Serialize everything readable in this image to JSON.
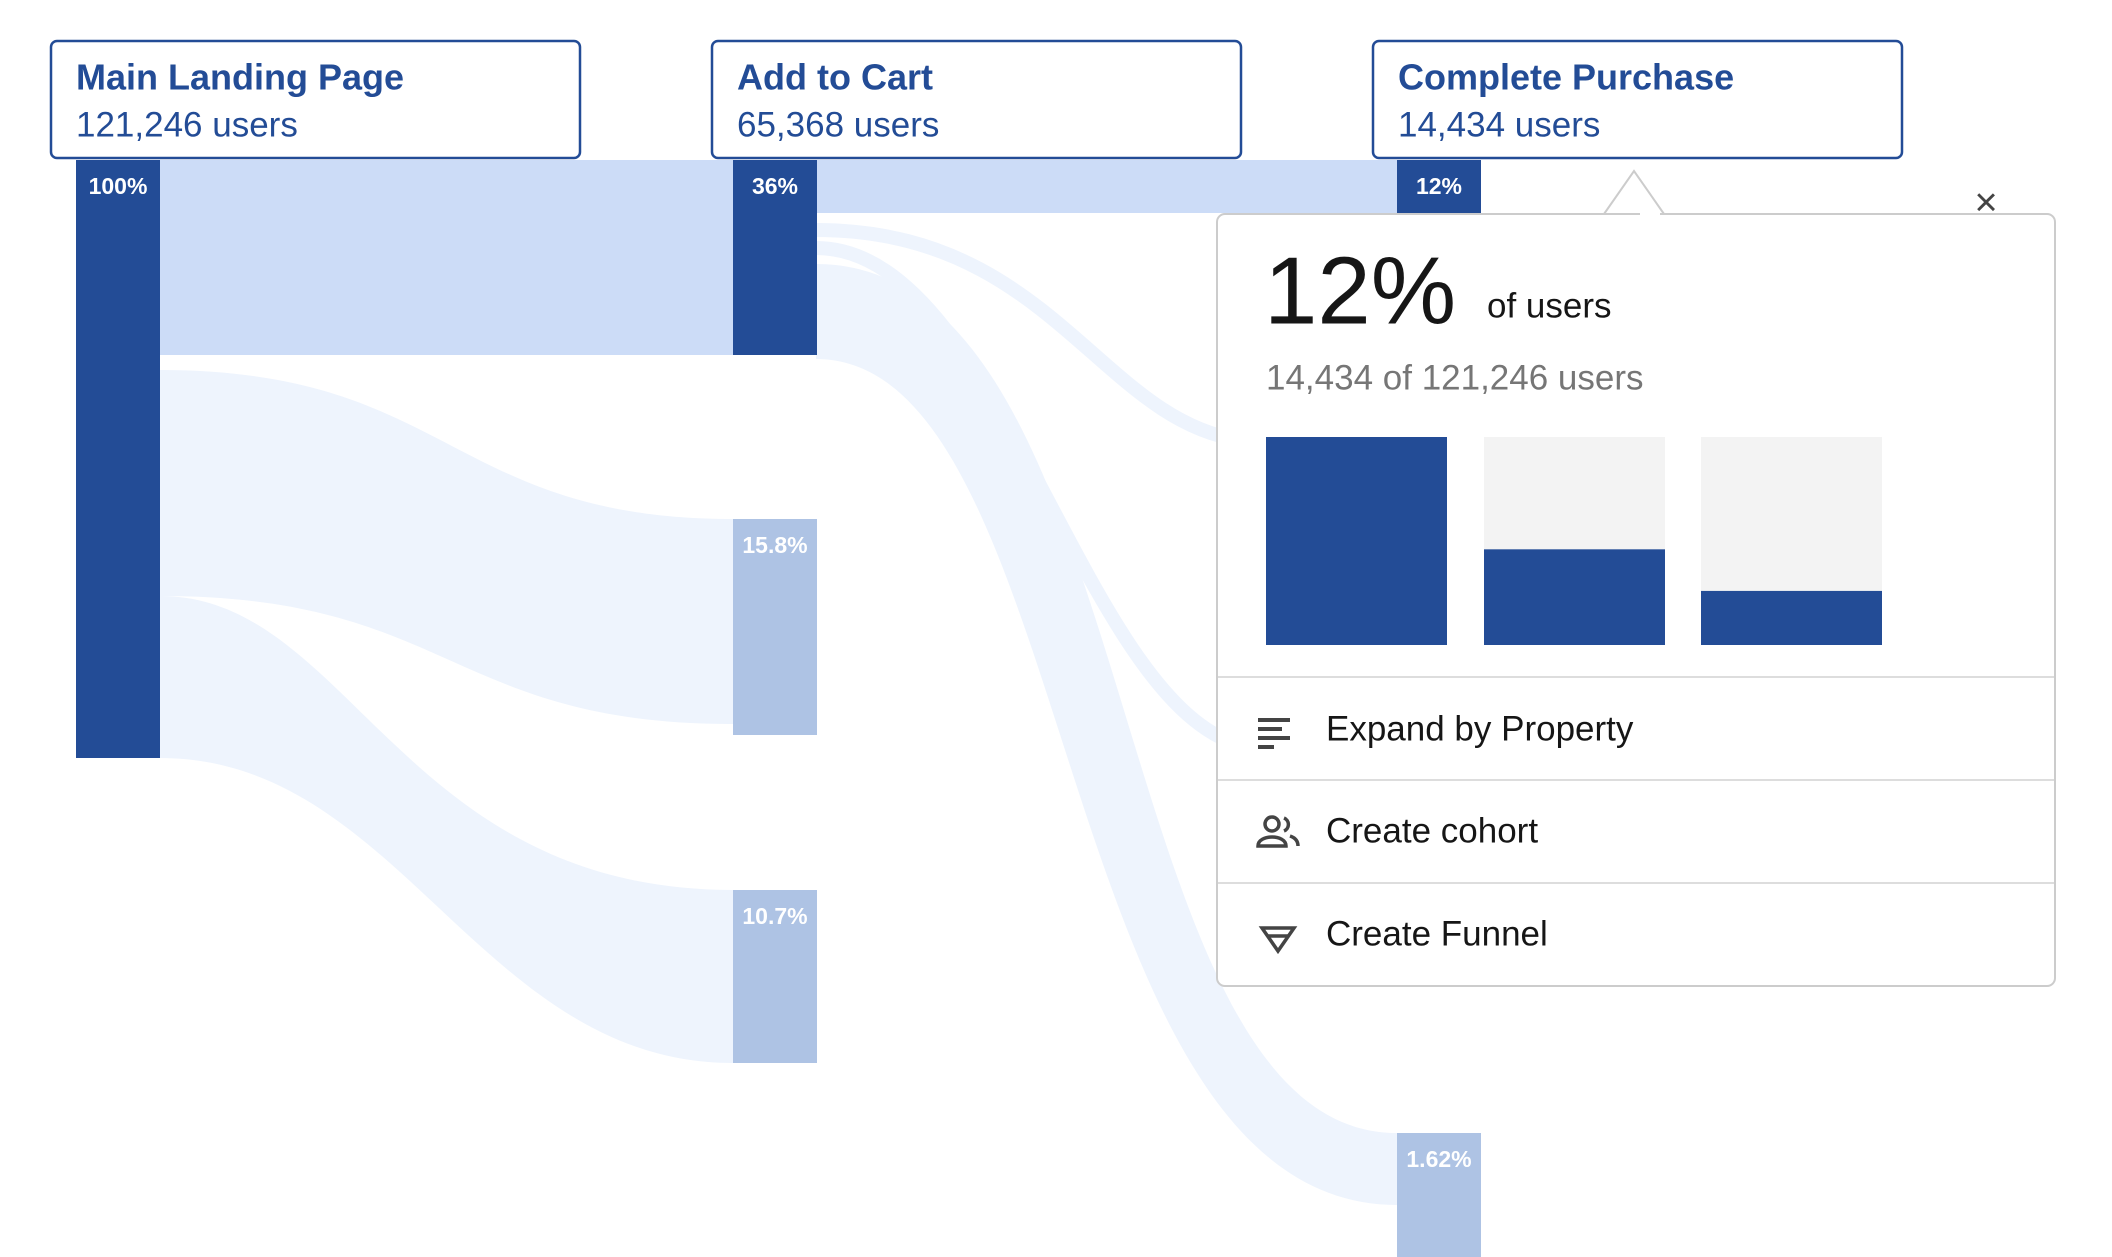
{
  "steps": [
    {
      "title": "Main Landing Page",
      "users": "121,246 users"
    },
    {
      "title": "Add to Cart",
      "users": "65,368 users"
    },
    {
      "title": "Complete Purchase",
      "users": "14,434 users"
    }
  ],
  "nodes": [
    "100%",
    "36%",
    "15.8%",
    "10.7%",
    "12%",
    "1.62%"
  ],
  "popup": {
    "close": "×",
    "percent": "12%",
    "percent_caption": "of users",
    "detail": "14,434 of 121,246 users",
    "bars": [
      100,
      46,
      26
    ],
    "menu": [
      "Expand by Property",
      "Create cohort",
      "Create Funnel"
    ]
  }
}
